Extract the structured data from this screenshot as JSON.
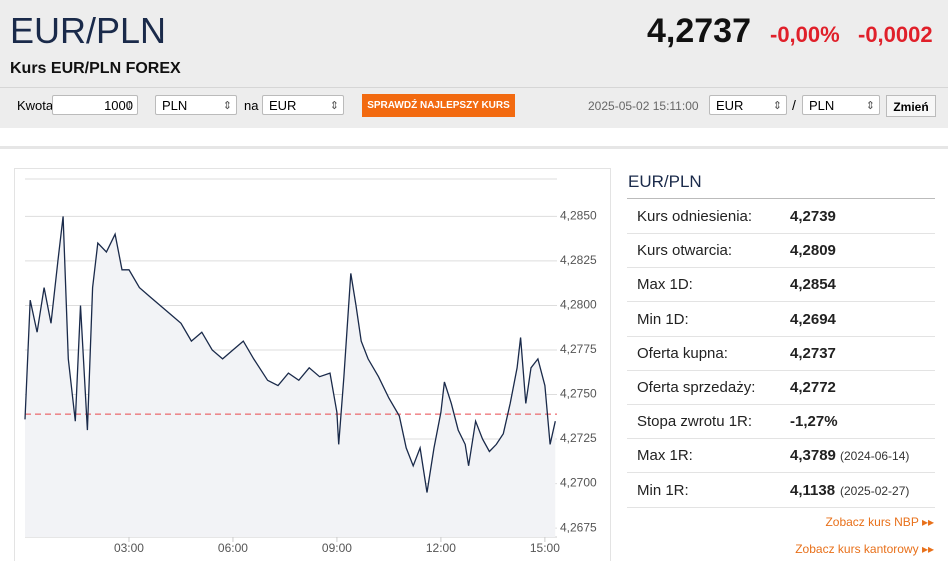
{
  "header": {
    "title": "EUR/PLN",
    "subtitle": "Kurs EUR/PLN FOREX",
    "price": "4,2737",
    "change_pct": "-0,00%",
    "change_abs": "-0,0002"
  },
  "form": {
    "amount_label": "Kwota",
    "amount": "1000",
    "from": "PLN",
    "to_label": "na",
    "to": "EUR",
    "button": "SPRAWDŹ NAJLEPSZY KURS",
    "timestamp": "2025-05-02 15:11:00",
    "pair_from": "EUR",
    "separator": "/",
    "pair_to": "PLN",
    "switch": "Zmień"
  },
  "chart_data": {
    "type": "line",
    "color": "#1a2a4a",
    "grid": true,
    "x": [
      0,
      0.15,
      0.35,
      0.55,
      0.75,
      0.95,
      1.1,
      1.25,
      1.45,
      1.6,
      1.8,
      1.95,
      2.1,
      2.35,
      2.6,
      2.8,
      3.0,
      3.3,
      3.6,
      3.9,
      4.2,
      4.5,
      4.8,
      5.1,
      5.4,
      5.7,
      6.0,
      6.3,
      6.6,
      7.0,
      7.3,
      7.6,
      7.9,
      8.2,
      8.5,
      8.8,
      9.0,
      9.05,
      9.2,
      9.4,
      9.55,
      9.7,
      9.9,
      10.2,
      10.5,
      10.8,
      11.0,
      11.2,
      11.4,
      11.6,
      11.8,
      12.0,
      12.1,
      12.3,
      12.5,
      12.7,
      12.8,
      13.0,
      13.2,
      13.4,
      13.6,
      13.8,
      14.0,
      14.2,
      14.3,
      14.45,
      14.6,
      14.8,
      15.0,
      15.15,
      15.3
    ],
    "values": [
      4.2736,
      4.2803,
      4.2785,
      4.281,
      4.279,
      4.2825,
      4.285,
      4.277,
      4.2735,
      4.28,
      4.273,
      4.281,
      4.2835,
      4.283,
      4.284,
      4.282,
      4.282,
      4.281,
      4.2805,
      4.28,
      4.2795,
      4.279,
      4.278,
      4.2785,
      4.2775,
      4.277,
      4.2775,
      4.278,
      4.277,
      4.2758,
      4.2755,
      4.2762,
      4.2758,
      4.2765,
      4.276,
      4.2762,
      4.274,
      4.2722,
      4.276,
      4.2818,
      4.28,
      4.278,
      4.277,
      4.276,
      4.2748,
      4.2738,
      4.272,
      4.271,
      4.272,
      4.2695,
      4.272,
      4.274,
      4.2757,
      4.2745,
      4.273,
      4.2722,
      4.271,
      4.2735,
      4.2725,
      4.2718,
      4.2722,
      4.2728,
      4.2745,
      4.2765,
      4.2782,
      4.2745,
      4.2765,
      4.277,
      4.2755,
      4.2722,
      4.2735
    ],
    "reference": 4.2739,
    "xlim": [
      0,
      15.35
    ],
    "xticks": [
      {
        "value": 3,
        "label": "03:00"
      },
      {
        "value": 6,
        "label": "06:00"
      },
      {
        "value": 9,
        "label": "09:00"
      },
      {
        "value": 12,
        "label": "12:00"
      },
      {
        "value": 15,
        "label": "15:00"
      }
    ],
    "ylim": [
      4.267,
      4.2871
    ],
    "yticks": [
      {
        "value": 4.2675,
        "label": "4,2675"
      },
      {
        "value": 4.27,
        "label": "4,2700"
      },
      {
        "value": 4.2725,
        "label": "4,2725"
      },
      {
        "value": 4.275,
        "label": "4,2750"
      },
      {
        "value": 4.2775,
        "label": "4,2775"
      },
      {
        "value": 4.28,
        "label": "4,2800"
      },
      {
        "value": 4.2825,
        "label": "4,2825"
      },
      {
        "value": 4.285,
        "label": "4,2850"
      }
    ]
  },
  "stats": {
    "title": "EUR/PLN",
    "rows": [
      {
        "label": "Kurs odniesienia:",
        "value": "4,2739"
      },
      {
        "label": "Kurs otwarcia:",
        "value": "4,2809"
      },
      {
        "label": "Max 1D:",
        "value": "4,2854"
      },
      {
        "label": "Min 1D:",
        "value": "4,2694"
      },
      {
        "label": "Oferta kupna:",
        "value": "4,2737"
      },
      {
        "label": "Oferta sprzedaży:",
        "value": "4,2772"
      },
      {
        "label": "Stopa zwrotu 1R:",
        "value": "-1,27%"
      },
      {
        "label": "Max 1R:",
        "value": "4,3789",
        "date": "(2024-06-14)"
      },
      {
        "label": "Min 1R:",
        "value": "4,1138",
        "date": "(2025-02-27)"
      }
    ]
  },
  "links": {
    "nbp": "Zobacz kurs NBP",
    "kantor": "Zobacz kurs kantorowy"
  }
}
